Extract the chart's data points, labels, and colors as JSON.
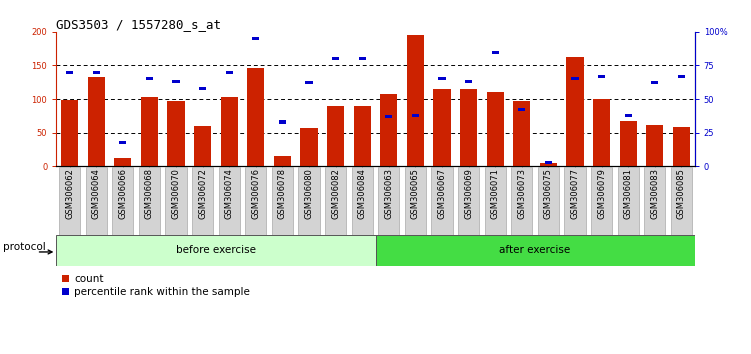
{
  "title": "GDS3503 / 1557280_s_at",
  "samples": [
    "GSM306062",
    "GSM306064",
    "GSM306066",
    "GSM306068",
    "GSM306070",
    "GSM306072",
    "GSM306074",
    "GSM306076",
    "GSM306078",
    "GSM306080",
    "GSM306082",
    "GSM306084",
    "GSM306063",
    "GSM306065",
    "GSM306067",
    "GSM306069",
    "GSM306071",
    "GSM306073",
    "GSM306075",
    "GSM306077",
    "GSM306079",
    "GSM306081",
    "GSM306083",
    "GSM306085"
  ],
  "count_values": [
    98,
    133,
    13,
    103,
    97,
    60,
    103,
    146,
    15,
    57,
    90,
    90,
    107,
    196,
    115,
    115,
    110,
    97,
    5,
    163,
    100,
    68,
    61,
    59
  ],
  "percentile_values": [
    70,
    70,
    18,
    65,
    63,
    58,
    70,
    95,
    33,
    62,
    80,
    80,
    37,
    38,
    65,
    63,
    85,
    42,
    3,
    65,
    67,
    38,
    62,
    67
  ],
  "before_exercise_count": 12,
  "after_exercise_count": 12,
  "bar_color": "#cc2200",
  "blue_color": "#0000cc",
  "before_bg": "#ccffcc",
  "after_bg": "#44dd44",
  "ylim_left": [
    0,
    200
  ],
  "ylim_right": [
    0,
    100
  ],
  "yticks_left": [
    0,
    50,
    100,
    150,
    200
  ],
  "yticks_right": [
    0,
    25,
    50,
    75,
    100
  ],
  "yticklabels_right": [
    "0",
    "25",
    "50",
    "75",
    "100%"
  ],
  "grid_values": [
    50,
    100,
    150
  ],
  "protocol_label": "protocol",
  "before_label": "before exercise",
  "after_label": "after exercise",
  "legend_count": "count",
  "legend_percentile": "percentile rank within the sample",
  "title_fontsize": 9,
  "tick_fontsize": 6,
  "label_fontsize": 7.5,
  "bar_width": 0.65
}
